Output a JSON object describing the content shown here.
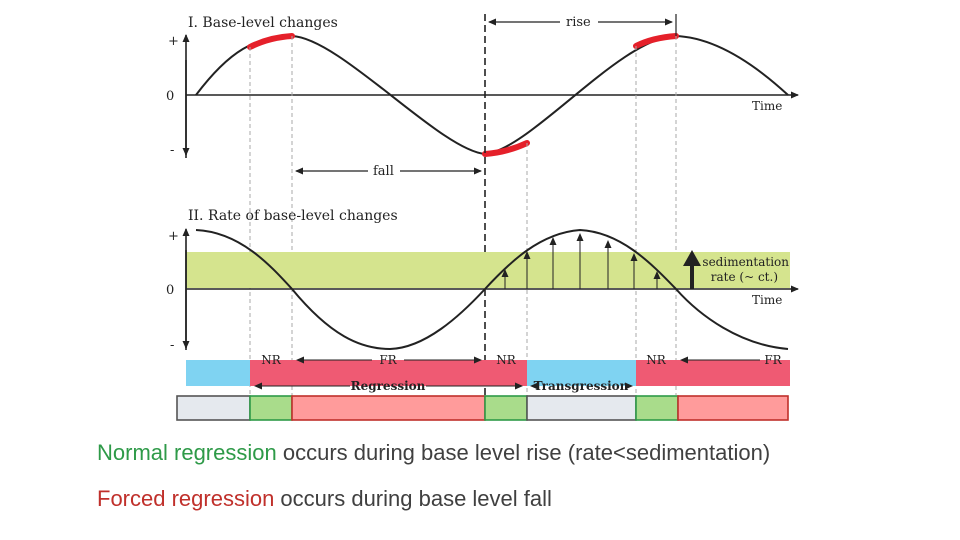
{
  "panel_1": {
    "title": "I. Base-level changes",
    "y_plus": "+",
    "y_zero": "0",
    "y_minus": "-",
    "x_label": "Time",
    "rise_label": "rise",
    "fall_label": "fall"
  },
  "panel_2": {
    "title": "II. Rate of base-level changes",
    "y_plus": "+",
    "y_zero": "0",
    "y_minus": "-",
    "x_label": "Time",
    "sed_line1": "sedimentation",
    "sed_line2": "rate (~ ct.)"
  },
  "bands": {
    "nr_1": "NR",
    "fr_1": "FR",
    "nr_2": "NR",
    "nr_3": "NR",
    "fr_2": "FR",
    "regression": "Regression",
    "transgression": "Transgression"
  },
  "colors": {
    "curve": "#222222",
    "highlight": "#e5202a",
    "sed_band": "#d5e48e",
    "blue_band": "#7fd3f2",
    "red_band": "#ef5a73",
    "green_box": "#a9dc8b",
    "salmon_box": "#ff9b9b",
    "gray_box": "#e5e9ee"
  },
  "caption": {
    "line1_highlight": "Normal regression",
    "line1_rest": " occurs during base level rise (rate<sedimentation)",
    "line2_highlight": "Forced regression",
    "line2_rest": " occurs during base level fall"
  }
}
